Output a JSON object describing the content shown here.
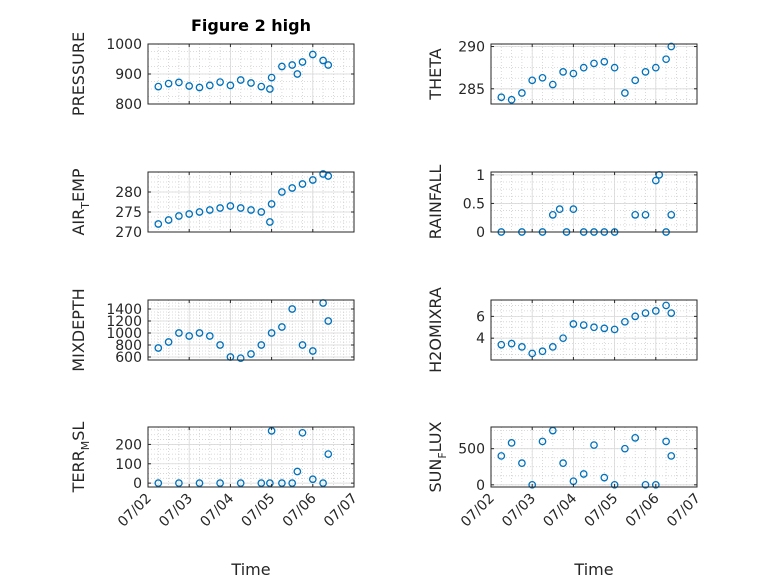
{
  "figure": {
    "title": "Figure 2 high",
    "xlabel": "Time",
    "colors": {
      "marker": "#0072bd",
      "axis": "#262626",
      "grid": "#cfcfcf"
    }
  },
  "chart_data": [
    {
      "type": "scatter",
      "ylabel_parts": [
        "PRESSURE"
      ],
      "ylim": [
        800,
        1000
      ],
      "yticks": [
        800,
        900,
        1000
      ],
      "xlim": [
        "07/02",
        "07/07"
      ],
      "xticks": [
        "07/02",
        "07/03",
        "07/04",
        "07/05",
        "07/06",
        "07/07"
      ],
      "x": [
        "07/02 06:00",
        "07/02 12:00",
        "07/02 18:00",
        "07/03 00:00",
        "07/03 06:00",
        "07/03 12:00",
        "07/03 18:00",
        "07/04 00:00",
        "07/04 06:00",
        "07/04 12:00",
        "07/04 18:00",
        "07/04 23:00",
        "07/05 00:00",
        "07/05 06:00",
        "07/05 12:00",
        "07/05 15:00",
        "07/05 18:00",
        "07/06 00:00",
        "07/06 06:00",
        "07/06 09:00"
      ],
      "y": [
        858,
        868,
        872,
        860,
        855,
        862,
        873,
        862,
        880,
        870,
        858,
        850,
        888,
        925,
        930,
        900,
        940,
        965,
        945,
        930
      ]
    },
    {
      "type": "scatter",
      "ylabel_parts": [
        "THETA"
      ],
      "ylim": [
        283.2,
        290.3
      ],
      "yticks": [
        285,
        290
      ],
      "xlim": [
        "07/02",
        "07/07"
      ],
      "xticks": [
        "07/02",
        "07/03",
        "07/04",
        "07/05",
        "07/06",
        "07/07"
      ],
      "x": [
        "07/02 06:00",
        "07/02 12:00",
        "07/02 18:00",
        "07/03 00:00",
        "07/03 06:00",
        "07/03 12:00",
        "07/03 18:00",
        "07/04 00:00",
        "07/04 06:00",
        "07/04 12:00",
        "07/04 18:00",
        "07/05 00:00",
        "07/05 06:00",
        "07/05 12:00",
        "07/05 18:00",
        "07/06 00:00",
        "07/06 06:00",
        "07/06 09:00"
      ],
      "y": [
        284,
        283.7,
        284.5,
        286,
        286.3,
        285.5,
        287,
        286.8,
        287.5,
        288,
        288.2,
        287.5,
        284.5,
        286,
        287,
        287.5,
        288.5,
        290
      ]
    },
    {
      "type": "scatter",
      "ylabel_parts": [
        "AIR",
        "T",
        "EMP"
      ],
      "ylim": [
        270,
        285
      ],
      "yticks": [
        270,
        275,
        280
      ],
      "xlim": [
        "07/02",
        "07/07"
      ],
      "xticks": [
        "07/02",
        "07/03",
        "07/04",
        "07/05",
        "07/06",
        "07/07"
      ],
      "x": [
        "07/02 06:00",
        "07/02 12:00",
        "07/02 18:00",
        "07/03 00:00",
        "07/03 06:00",
        "07/03 12:00",
        "07/03 18:00",
        "07/04 00:00",
        "07/04 06:00",
        "07/04 12:00",
        "07/04 18:00",
        "07/04 23:00",
        "07/05 00:00",
        "07/05 06:00",
        "07/05 12:00",
        "07/05 18:00",
        "07/06 00:00",
        "07/06 06:00",
        "07/06 09:00"
      ],
      "y": [
        272,
        273,
        274,
        274.5,
        275,
        275.5,
        276,
        276.5,
        276,
        275.5,
        275,
        272.5,
        277,
        280,
        281,
        282,
        283,
        284.5,
        284
      ]
    },
    {
      "type": "scatter",
      "ylabel_parts": [
        "RAINFALL"
      ],
      "ylim": [
        0,
        1.05
      ],
      "yticks": [
        0,
        0.5,
        1
      ],
      "xlim": [
        "07/02",
        "07/07"
      ],
      "xticks": [
        "07/02",
        "07/03",
        "07/04",
        "07/05",
        "07/06",
        "07/07"
      ],
      "x": [
        "07/02 06:00",
        "07/02 18:00",
        "07/03 06:00",
        "07/03 12:00",
        "07/03 16:00",
        "07/03 20:00",
        "07/04 00:00",
        "07/04 06:00",
        "07/04 12:00",
        "07/04 18:00",
        "07/05 00:00",
        "07/05 12:00",
        "07/05 18:00",
        "07/06 00:00",
        "07/06 02:00",
        "07/06 06:00",
        "07/06 09:00"
      ],
      "y": [
        0,
        0,
        0,
        0.3,
        0.4,
        0,
        0.4,
        0,
        0,
        0,
        0,
        0.3,
        0.3,
        0.9,
        1,
        0,
        0.3
      ]
    },
    {
      "type": "scatter",
      "ylabel_parts": [
        "MIXDEPTH"
      ],
      "ylim": [
        550,
        1550
      ],
      "yticks": [
        600,
        800,
        1000,
        1200,
        1400
      ],
      "xlim": [
        "07/02",
        "07/07"
      ],
      "xticks": [
        "07/02",
        "07/03",
        "07/04",
        "07/05",
        "07/06",
        "07/07"
      ],
      "x": [
        "07/02 06:00",
        "07/02 12:00",
        "07/02 18:00",
        "07/03 00:00",
        "07/03 06:00",
        "07/03 12:00",
        "07/03 18:00",
        "07/04 00:00",
        "07/04 06:00",
        "07/04 12:00",
        "07/04 18:00",
        "07/05 00:00",
        "07/05 06:00",
        "07/05 12:00",
        "07/05 18:00",
        "07/06 00:00",
        "07/06 06:00",
        "07/06 09:00"
      ],
      "y": [
        750,
        850,
        1000,
        950,
        1000,
        950,
        800,
        600,
        580,
        650,
        800,
        1000,
        1100,
        1400,
        800,
        700,
        1500,
        1200
      ]
    },
    {
      "type": "scatter",
      "ylabel_parts": [
        "H2OMIXRA"
      ],
      "ylim": [
        2,
        7.5
      ],
      "yticks": [
        4,
        6
      ],
      "xlim": [
        "07/02",
        "07/07"
      ],
      "xticks": [
        "07/02",
        "07/03",
        "07/04",
        "07/05",
        "07/06",
        "07/07"
      ],
      "x": [
        "07/02 06:00",
        "07/02 12:00",
        "07/02 18:00",
        "07/03 00:00",
        "07/03 06:00",
        "07/03 12:00",
        "07/03 18:00",
        "07/04 00:00",
        "07/04 06:00",
        "07/04 12:00",
        "07/04 18:00",
        "07/05 00:00",
        "07/05 06:00",
        "07/05 12:00",
        "07/05 18:00",
        "07/06 00:00",
        "07/06 06:00",
        "07/06 09:00"
      ],
      "y": [
        3.4,
        3.5,
        3.2,
        2.6,
        2.8,
        3.2,
        4,
        5.3,
        5.2,
        5,
        4.9,
        4.8,
        5.5,
        6,
        6.3,
        6.5,
        7,
        6.3
      ]
    },
    {
      "type": "scatter",
      "ylabel_parts": [
        "TERR",
        "M",
        "SL"
      ],
      "ylim": [
        -20,
        290
      ],
      "yticks": [
        0,
        100,
        200
      ],
      "xlim": [
        "07/02",
        "07/07"
      ],
      "xticks": [
        "07/02",
        "07/03",
        "07/04",
        "07/05",
        "07/06",
        "07/07"
      ],
      "x": [
        "07/02 06:00",
        "07/02 18:00",
        "07/03 06:00",
        "07/03 18:00",
        "07/04 06:00",
        "07/04 18:00",
        "07/04 23:00",
        "07/05 00:00",
        "07/05 06:00",
        "07/05 12:00",
        "07/05 15:00",
        "07/05 18:00",
        "07/06 00:00",
        "07/06 06:00",
        "07/06 09:00"
      ],
      "y": [
        0,
        0,
        0,
        0,
        0,
        0,
        0,
        270,
        0,
        0,
        60,
        260,
        20,
        0,
        150
      ]
    },
    {
      "type": "scatter",
      "ylabel_parts": [
        "SUN",
        "F",
        "LUX"
      ],
      "ylim": [
        -30,
        800
      ],
      "yticks": [
        0,
        500
      ],
      "xlim": [
        "07/02",
        "07/07"
      ],
      "xticks": [
        "07/02",
        "07/03",
        "07/04",
        "07/05",
        "07/06",
        "07/07"
      ],
      "x": [
        "07/02 06:00",
        "07/02 12:00",
        "07/02 18:00",
        "07/03 00:00",
        "07/03 06:00",
        "07/03 12:00",
        "07/03 18:00",
        "07/04 00:00",
        "07/04 06:00",
        "07/04 12:00",
        "07/04 18:00",
        "07/05 00:00",
        "07/05 06:00",
        "07/05 12:00",
        "07/05 18:00",
        "07/06 00:00",
        "07/06 06:00",
        "07/06 09:00"
      ],
      "y": [
        400,
        580,
        300,
        0,
        600,
        750,
        300,
        50,
        150,
        550,
        100,
        0,
        500,
        650,
        0,
        0,
        600,
        400
      ]
    }
  ]
}
